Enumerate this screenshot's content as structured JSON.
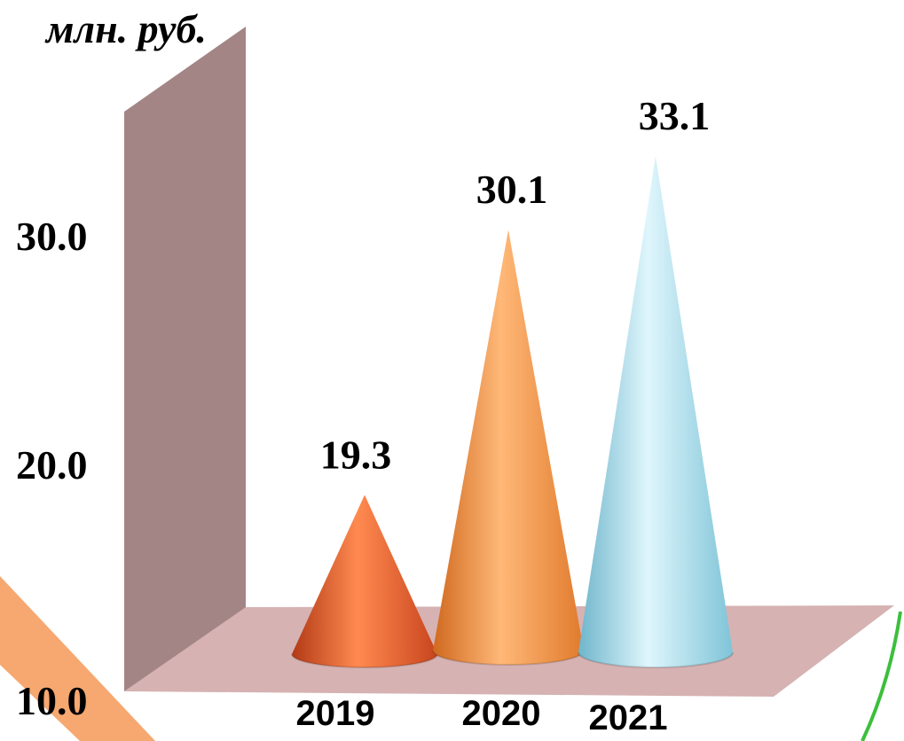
{
  "chart_data": {
    "type": "bar",
    "shape": "cone",
    "unit_label": "млн. руб.",
    "categories": [
      "2019",
      "2020",
      "2021"
    ],
    "values": [
      19.3,
      30.1,
      33.1
    ],
    "data_labels": [
      "19.3",
      "30.1",
      "33.1"
    ],
    "y_ticks": [
      {
        "value": 10,
        "label": "10.0"
      },
      {
        "value": 20,
        "label": "20.0"
      },
      {
        "value": 30,
        "label": "30.0"
      }
    ],
    "ylim": [
      10,
      35
    ],
    "grid": false,
    "legend": "none",
    "colors": {
      "wall": "#a48585",
      "floor": "#d6b2b2",
      "series": [
        "#e0582a",
        "#f08a3a",
        "#8fd4e6"
      ]
    }
  },
  "decor": {
    "accent_orange": "#f6a870",
    "accent_green": "#3cbf3c"
  }
}
